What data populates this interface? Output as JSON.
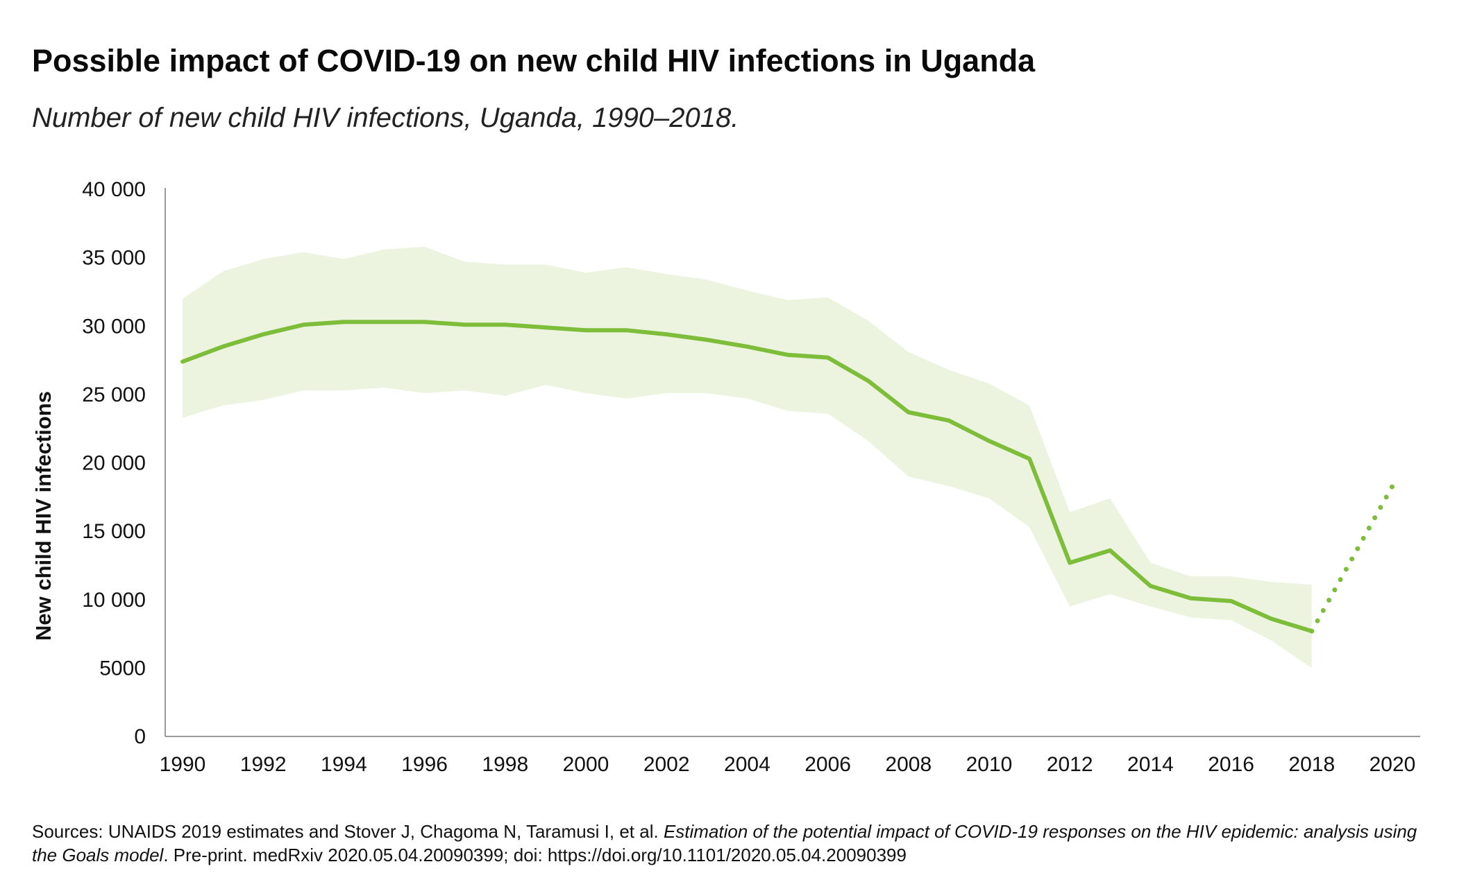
{
  "title": "Possible impact of COVID-19 on new child HIV infections in Uganda",
  "subtitle": "Number of new child HIV infections, Uganda, 1990–2018.",
  "source": {
    "prefix": "Sources: UNAIDS 2019 estimates and Stover J, Chagoma N, Taramusi I, et al. ",
    "title_italic": "Estimation of the potential impact of COVID-19 responses on the HIV epidemic: analysis using the Goals model",
    "suffix": ". Pre-print. medRxiv 2020.05.04.20090399; doi: https://doi.org/10.1101/2020.05.04.20090399"
  },
  "colors": {
    "line": "#7dbd3a",
    "band": "#ecf4df",
    "axis": "#999999"
  },
  "chart_data": {
    "type": "line",
    "title": "Possible impact of COVID-19 on new child HIV infections in Uganda",
    "subtitle": "Number of new child HIV infections, Uganda, 1990–2018.",
    "xlabel": "",
    "ylabel": "New child HIV infections",
    "xlim": [
      1990,
      2020
    ],
    "ylim": [
      0,
      40000
    ],
    "x_ticks": [
      1990,
      1992,
      1994,
      1996,
      1998,
      2000,
      2002,
      2004,
      2006,
      2008,
      2010,
      2012,
      2014,
      2016,
      2018,
      2020
    ],
    "y_ticks": [
      0,
      5000,
      10000,
      15000,
      20000,
      25000,
      30000,
      35000,
      40000
    ],
    "y_tick_labels": [
      "0",
      "5000",
      "10 000",
      "15 000",
      "20 000",
      "25 000",
      "30 000",
      "35 000",
      "40 000"
    ],
    "grid": false,
    "series": [
      {
        "style": "solid",
        "x": [
          1990,
          1991,
          1992,
          1993,
          1994,
          1995,
          1996,
          1997,
          1998,
          1999,
          2000,
          2001,
          2002,
          2003,
          2004,
          2005,
          2006,
          2007,
          2008,
          2009,
          2010,
          2011,
          2012,
          2013,
          2014,
          2015,
          2016,
          2017,
          2018
        ],
        "y": [
          27400,
          28500,
          29400,
          30100,
          30300,
          30300,
          30300,
          30100,
          30100,
          29900,
          29700,
          29700,
          29400,
          29000,
          28500,
          27900,
          27700,
          26000,
          23700,
          23100,
          21600,
          20300,
          12700,
          13600,
          11000,
          10100,
          9900,
          8600,
          7700
        ],
        "lower": [
          23300,
          24200,
          24600,
          25300,
          25300,
          25500,
          25100,
          25300,
          24900,
          25700,
          25100,
          24700,
          25100,
          25100,
          24700,
          23800,
          23600,
          21600,
          19000,
          18300,
          17400,
          15300,
          9500,
          10400,
          9500,
          8700,
          8500,
          7000,
          5000
        ],
        "upper": [
          32000,
          34000,
          34900,
          35400,
          34900,
          35600,
          35800,
          34700,
          34500,
          34500,
          33900,
          34300,
          33800,
          33400,
          32600,
          31900,
          32100,
          30400,
          28100,
          26800,
          25800,
          24200,
          16400,
          17400,
          12700,
          11700,
          11700,
          11300,
          11100
        ]
      },
      {
        "style": "dotted",
        "x": [
          2018,
          2020
        ],
        "y": [
          7700,
          18300
        ]
      }
    ]
  }
}
